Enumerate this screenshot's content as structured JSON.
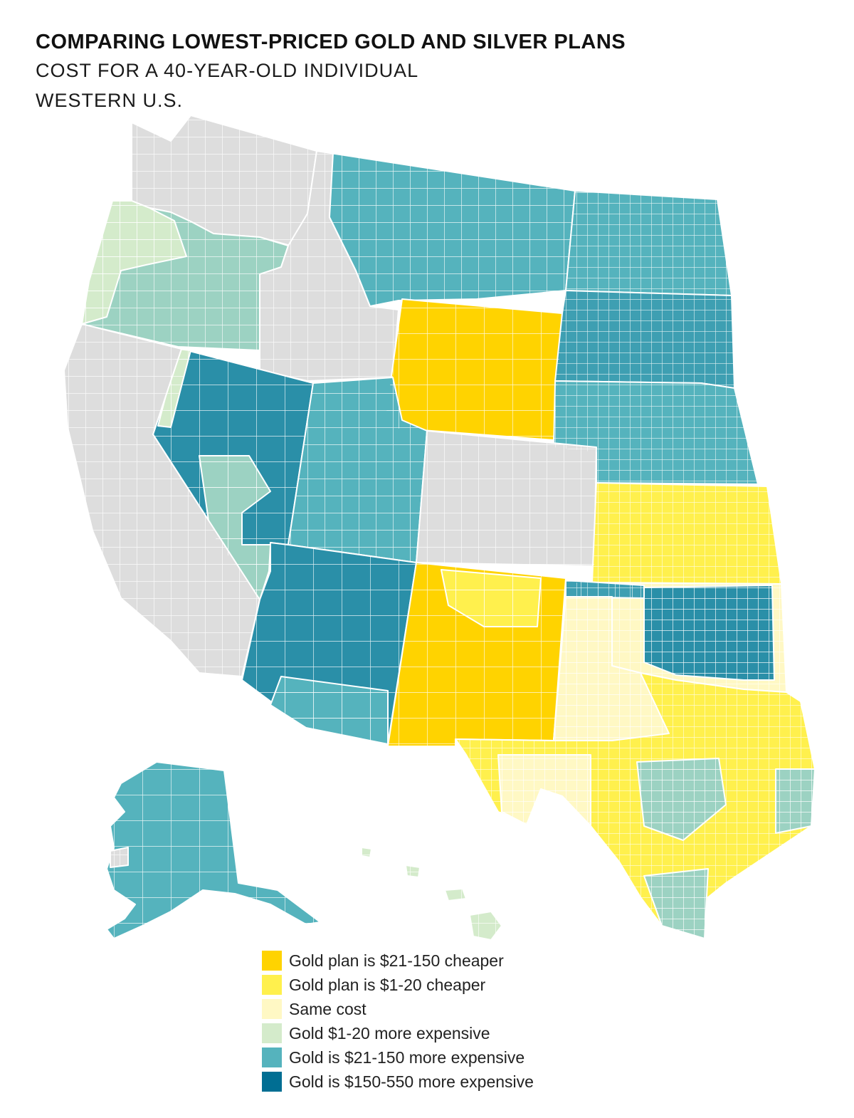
{
  "header": {
    "title": "COMPARING LOWEST-PRICED GOLD AND SILVER PLANS",
    "subtitle1": "COST FOR A 40-YEAR-OLD INDIVIDUAL",
    "subtitle2": "WESTERN U.S."
  },
  "legend": {
    "items": [
      {
        "label": "Gold plan is $21-150 cheaper",
        "color": "#FFD300"
      },
      {
        "label": "Gold plan is $1-20 cheaper",
        "color": "#FFF04D"
      },
      {
        "label": "Same cost",
        "color": "#FFF8C4"
      },
      {
        "label": "Gold $1-20 more expensive",
        "color": "#D4EBCB"
      },
      {
        "label": "Gold is $21-150 more expensive",
        "color": "#55B3BD"
      },
      {
        "label": "Gold is $150-550 more expensive",
        "color": "#006E93"
      }
    ]
  },
  "map": {
    "region_colors": {
      "no_data": "#DDDDDD",
      "gold_much_cheaper": "#FFD300",
      "gold_cheaper": "#FFF04D",
      "same": "#FFF8C4",
      "light_green": "#D4EBCB",
      "mint": "#9CD2C2",
      "teal": "#55B3BD",
      "teal_mid": "#3E9FB2",
      "dark_teal": "#2A8FA8",
      "darkest": "#006E93"
    }
  }
}
